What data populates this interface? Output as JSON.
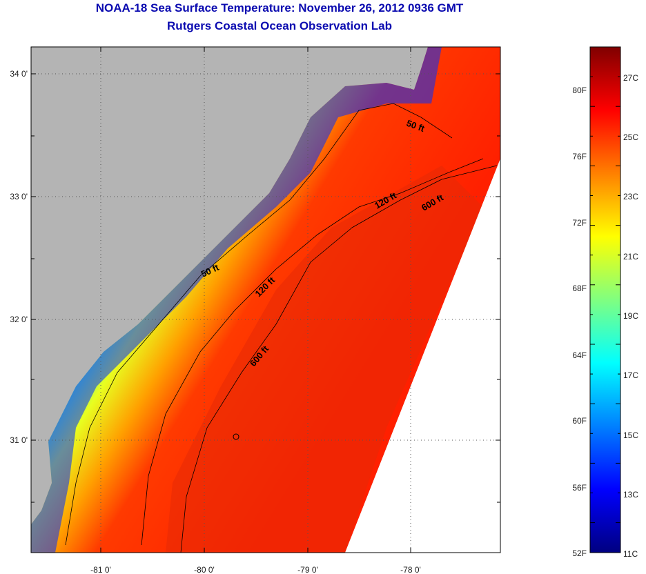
{
  "title": "NOAA-18 Sea Surface Temperature:  November 26, 2012 0936 GMT",
  "subtitle": "Rutgers Coastal Ocean Observation Lab",
  "map": {
    "lat_labels": [
      "34 0'",
      "33 0'",
      "32 0'",
      "31 0'"
    ],
    "lon_labels": [
      "-81 0'",
      "-80 0'",
      "-79 0'",
      "-78 0'"
    ],
    "contours": [
      "50 ft",
      "120 ft",
      "600 ft",
      "50 ft",
      "120 ft",
      "600 ft"
    ]
  },
  "colorbar": {
    "celsius_labels": [
      "27C",
      "25C",
      "23C",
      "21C",
      "19C",
      "17C",
      "15C",
      "13C",
      "11C"
    ],
    "fahrenheit_labels": [
      "80F",
      "76F",
      "72F",
      "68F",
      "64F",
      "60F",
      "56F",
      "52F"
    ],
    "colors": [
      "#800000",
      "#ff0000",
      "#ff8000",
      "#ffff00",
      "#80ff80",
      "#00ffff",
      "#0080ff",
      "#0000ff",
      "#000080"
    ]
  },
  "colors": {
    "land": "#b4b4b4",
    "title": "#0b0bb0"
  }
}
